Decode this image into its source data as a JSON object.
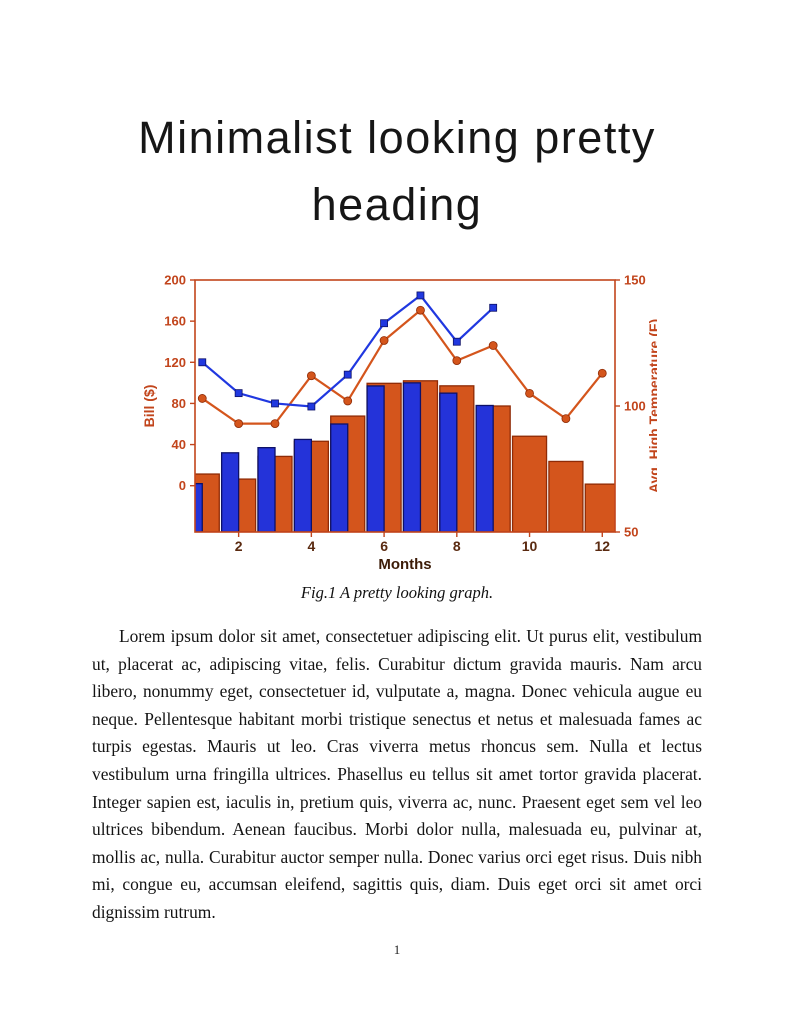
{
  "page": {
    "heading_line1": "Minimalist looking pretty",
    "heading_line2": "heading",
    "page_number": "1"
  },
  "figure": {
    "caption": "Fig.1 A pretty looking graph."
  },
  "body": {
    "paragraph": "Lorem ipsum dolor sit amet, consectetuer adipiscing elit. Ut purus elit, vestibulum ut, placerat ac, adipiscing vitae, felis. Curabitur dictum gravida mauris. Nam arcu libero, nonummy eget, consectetuer id, vulputate a, magna. Donec vehicula augue eu neque. Pellentesque habitant morbi tristique senectus et netus et malesuada fames ac turpis egestas. Mauris ut leo. Cras viverra metus rhoncus sem. Nulla et lectus vestibulum urna fringilla ultrices. Phasellus eu tellus sit amet tortor gravida placerat. Integer sapien est, iaculis in, pretium quis, viverra ac, nunc. Praesent eget sem vel leo ultrices bibendum. Aenean faucibus. Morbi dolor nulla, malesuada eu, pulvinar at, mollis ac, nulla. Curabitur auctor semper nulla. Donec varius orci eget risus. Duis nibh mi, congue eu, accumsan eleifend, sagittis quis, diam. Duis eget orci sit amet orci dignissim rutrum."
  },
  "chart_data": {
    "type": "bar",
    "subtype": "combo-bar-line-dual-axis",
    "x": [
      1,
      2,
      3,
      4,
      5,
      6,
      7,
      8,
      9,
      10,
      11,
      12
    ],
    "xlim": [
      0.8,
      12.35
    ],
    "xticks": [
      2,
      4,
      6,
      8,
      10,
      12
    ],
    "xlabel": "Months",
    "grid": false,
    "legend": "none",
    "left_axis": {
      "label": "Bill ($)",
      "min": -45,
      "max": 200,
      "ticks": [
        0,
        40,
        80,
        120,
        160,
        200
      ]
    },
    "right_axis": {
      "label": "Avg. High Temperature (F)",
      "min": 50,
      "max": 150,
      "ticks": [
        50,
        100,
        150
      ]
    },
    "series": [
      {
        "name": "temperature-bars",
        "type": "bar",
        "axis": "right",
        "color": "#d4551c",
        "edge": "#8f2b06",
        "values": [
          73,
          71,
          80,
          86,
          96,
          109,
          110,
          108,
          100,
          88,
          78,
          69
        ]
      },
      {
        "name": "bill-bars",
        "type": "bar",
        "axis": "left",
        "color": "#2433d9",
        "edge": "#0d1168",
        "values": [
          2,
          32,
          37,
          45,
          60,
          97,
          100,
          90,
          78,
          null,
          null,
          null
        ]
      },
      {
        "name": "temperature-line",
        "type": "line",
        "marker": "circle",
        "axis": "right",
        "color": "#d4551c",
        "edge": "#8f2b06",
        "values": [
          103,
          93,
          93,
          112,
          102,
          126,
          138,
          118,
          124,
          105,
          95,
          113
        ]
      },
      {
        "name": "bill-line",
        "type": "line",
        "marker": "square",
        "axis": "left",
        "color": "#2038e0",
        "edge": "#0d1168",
        "values": [
          120,
          90,
          80,
          77,
          108,
          158,
          185,
          140,
          173,
          null,
          null,
          null
        ]
      }
    ],
    "axis_style": {
      "axis_color": "#c2451c",
      "xtick_label_color": "#5a2a10",
      "xlabel_color": "#3c1c08"
    }
  }
}
